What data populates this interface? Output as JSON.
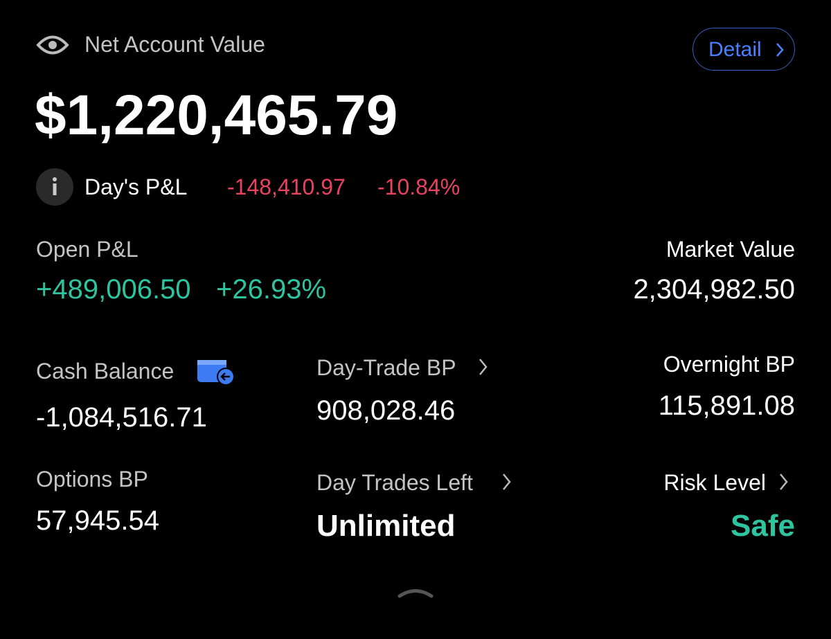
{
  "header": {
    "label": "Net Account Value",
    "detail_button": "Detail",
    "value": "$1,220,465.79"
  },
  "day_pnl": {
    "label": "Day's P&L",
    "value": "-148,410.97",
    "percent": "-10.84%"
  },
  "open_pnl": {
    "label": "Open P&L",
    "value": "+489,006.50",
    "percent": "+26.93%"
  },
  "market_value": {
    "label": "Market Value",
    "value": "2,304,982.50"
  },
  "cash_balance": {
    "label": "Cash Balance",
    "value": "-1,084,516.71"
  },
  "day_trade_bp": {
    "label": "Day-Trade BP",
    "value": "908,028.46"
  },
  "overnight_bp": {
    "label": "Overnight BP",
    "value": "115,891.08"
  },
  "options_bp": {
    "label": "Options BP",
    "value": "57,945.54"
  },
  "day_trades_left": {
    "label": "Day Trades Left",
    "value": "Unlimited"
  },
  "risk_level": {
    "label": "Risk Level",
    "value": "Safe"
  }
}
